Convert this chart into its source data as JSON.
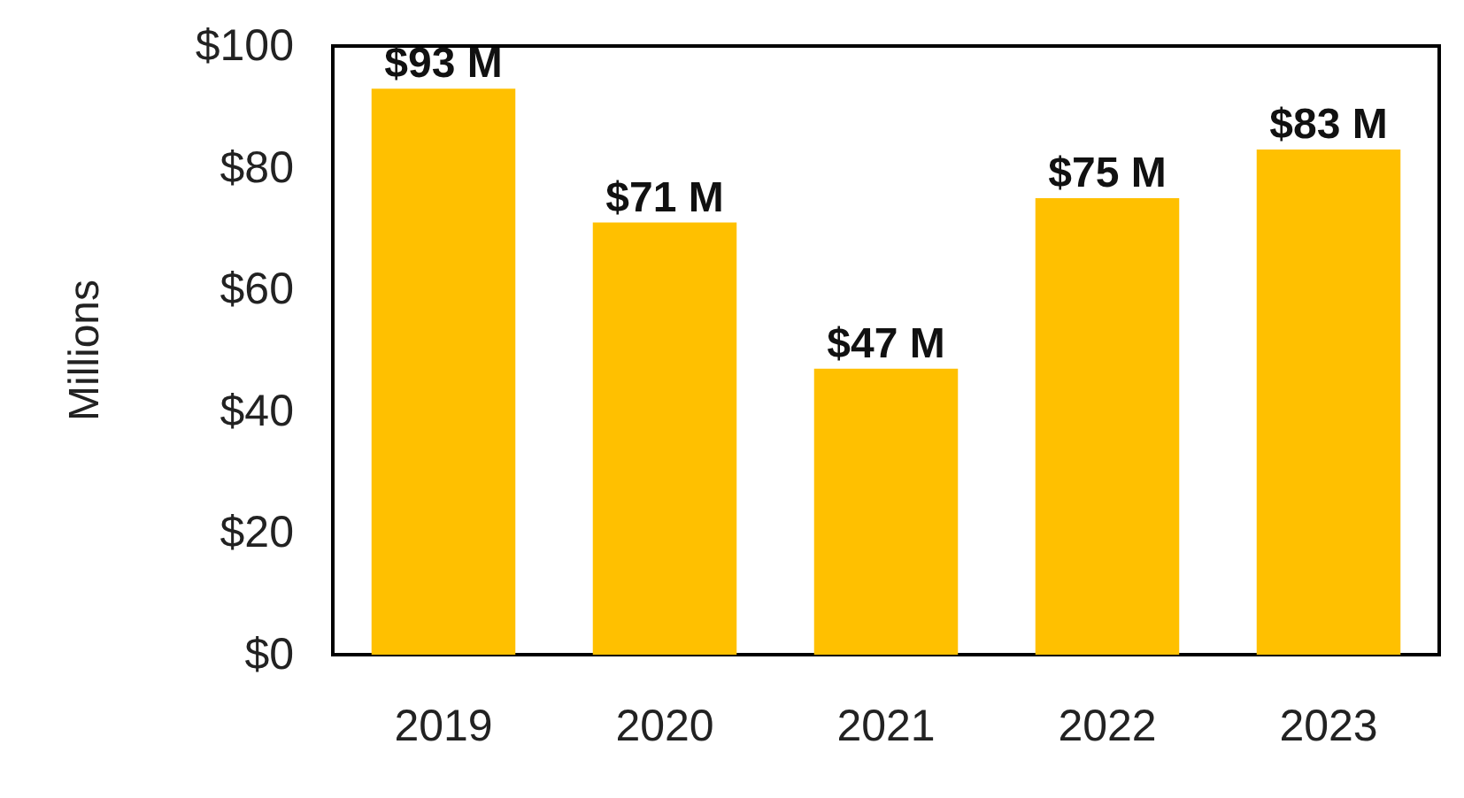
{
  "chart_data": {
    "type": "bar",
    "ylabel": "Millions",
    "categories": [
      "2019",
      "2020",
      "2021",
      "2022",
      "2023"
    ],
    "values": [
      93,
      71,
      47,
      75,
      83
    ],
    "value_labels": [
      "$93 M",
      "$71 M",
      "$47 M",
      "$75 M",
      "$83 M"
    ],
    "color": "#ffc000",
    "ylim": [
      0,
      100
    ],
    "yticks": [
      {
        "value": 0,
        "label": "$0"
      },
      {
        "value": 20,
        "label": "$20"
      },
      {
        "value": 40,
        "label": "$40"
      },
      {
        "value": 60,
        "label": "$60"
      },
      {
        "value": 80,
        "label": "$80"
      },
      {
        "value": 100,
        "label": "$100"
      }
    ],
    "grid": false
  }
}
